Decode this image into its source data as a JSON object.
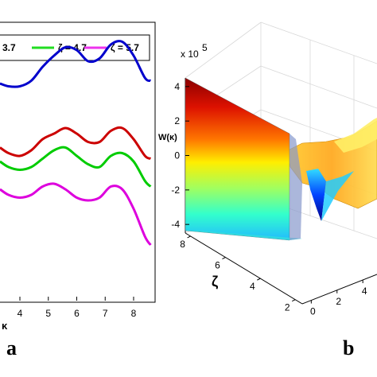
{
  "chart_data": [
    {
      "type": "line",
      "panel_label": "a",
      "xlabel": "κ",
      "xticks": [
        4,
        5,
        6,
        7,
        8
      ],
      "xlim": [
        3.3,
        8.7
      ],
      "ylim": [
        0,
        1
      ],
      "legend": {
        "placement": "top",
        "entries": [
          {
            "label": "3.7",
            "color": "#ff2a1a"
          },
          {
            "label": "ζ = 4.7",
            "color": "#22dd22"
          },
          {
            "label": "ζ = 5.7",
            "color": "#ee33ee"
          }
        ]
      },
      "series": [
        {
          "color": "#0000cc",
          "x": [
            3.3,
            3.6,
            4.0,
            4.4,
            4.8,
            5.2,
            5.6,
            6.0,
            6.4,
            6.8,
            7.2,
            7.6,
            8.0,
            8.4,
            8.6
          ],
          "y": [
            0.78,
            0.77,
            0.77,
            0.79,
            0.84,
            0.88,
            0.91,
            0.9,
            0.86,
            0.87,
            0.92,
            0.93,
            0.88,
            0.8,
            0.79
          ]
        },
        {
          "color": "#cc0000",
          "x": [
            3.3,
            3.6,
            4.0,
            4.4,
            4.8,
            5.2,
            5.6,
            6.0,
            6.4,
            6.8,
            7.2,
            7.6,
            8.0,
            8.4,
            8.6
          ],
          "y": [
            0.55,
            0.53,
            0.52,
            0.54,
            0.58,
            0.6,
            0.62,
            0.6,
            0.57,
            0.57,
            0.61,
            0.62,
            0.58,
            0.52,
            0.51
          ]
        },
        {
          "color": "#00cc00",
          "x": [
            3.3,
            3.6,
            4.0,
            4.4,
            4.8,
            5.2,
            5.6,
            6.0,
            6.4,
            6.8,
            7.2,
            7.6,
            8.0,
            8.4,
            8.6
          ],
          "y": [
            0.5,
            0.48,
            0.47,
            0.48,
            0.51,
            0.54,
            0.55,
            0.52,
            0.49,
            0.48,
            0.52,
            0.53,
            0.5,
            0.43,
            0.41
          ]
        },
        {
          "color": "#dd00dd",
          "x": [
            3.3,
            3.6,
            4.0,
            4.4,
            4.8,
            5.2,
            5.6,
            6.0,
            6.4,
            6.8,
            7.2,
            7.6,
            8.0,
            8.4,
            8.6
          ],
          "y": [
            0.4,
            0.38,
            0.37,
            0.38,
            0.41,
            0.42,
            0.4,
            0.37,
            0.36,
            0.37,
            0.41,
            0.4,
            0.33,
            0.23,
            0.2
          ]
        }
      ]
    },
    {
      "type": "surface",
      "panel_label": "b",
      "zlabel": "W(κ)",
      "zscale_label": "x 10",
      "zscale_exp": "5",
      "zticks": [
        -4,
        -2,
        0,
        2,
        4
      ],
      "ylabel": "ζ",
      "yticks": [
        2,
        4,
        6,
        8
      ],
      "xticks": [
        0,
        2,
        4
      ],
      "wall_value": 4.2,
      "dip_value": -3.4,
      "colormap": "jet"
    }
  ]
}
